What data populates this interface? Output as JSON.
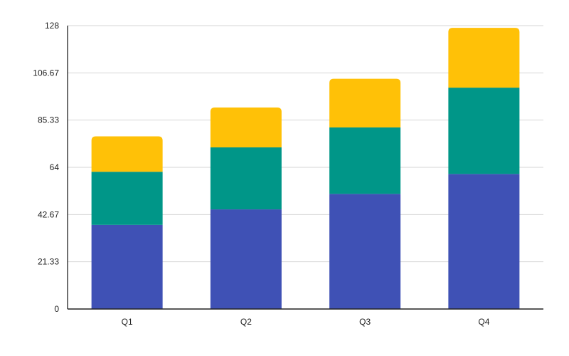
{
  "chart_data": {
    "type": "bar",
    "stacked": true,
    "categories": [
      "Q1",
      "Q2",
      "Q3",
      "Q4"
    ],
    "series": [
      {
        "values": [
          38,
          45,
          52,
          61
        ],
        "color": "#3f51b5"
      },
      {
        "values": [
          24,
          28,
          30,
          39
        ],
        "color": "#009688"
      },
      {
        "values": [
          16,
          18,
          22,
          27
        ],
        "color": "#ffc107"
      }
    ],
    "y_ticks": [
      "0",
      "21.33",
      "42.67",
      "64",
      "85.33",
      "106.67",
      "128"
    ],
    "ylim": [
      0,
      128
    ],
    "grid": true,
    "legend": "none",
    "title": "",
    "xlabel": "",
    "ylabel": ""
  }
}
